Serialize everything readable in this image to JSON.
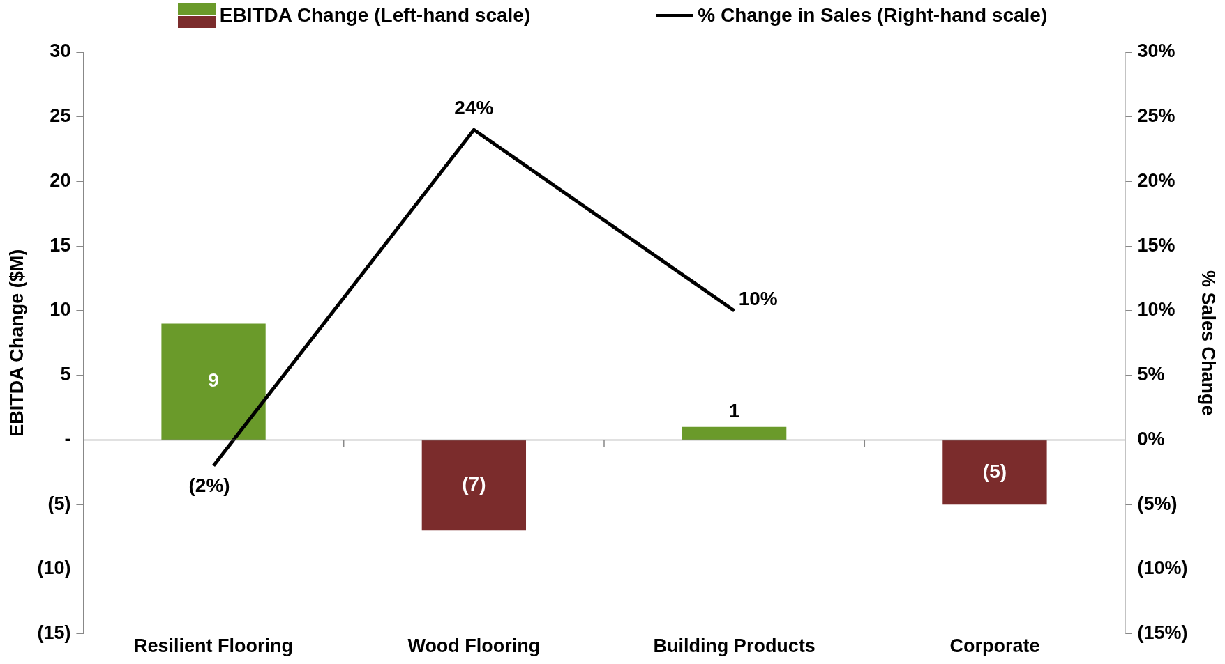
{
  "chart_data": {
    "type": "bar",
    "categories": [
      "Resilient Flooring",
      "Wood Flooring",
      "Building Products",
      "Corporate"
    ],
    "ylabel": "EBITDA Change ($M)",
    "y2label": "% Sales Change",
    "series": [
      {
        "name": "EBITDA Change (Left-hand scale)",
        "colors": [
          "#6a9a2a",
          "#7b2c2c",
          "#6a9a2a",
          "#7b2c2c"
        ],
        "values": [
          9,
          -7,
          1,
          -5
        ],
        "value_labels": [
          "9",
          "(7)",
          "1",
          "(5)"
        ]
      },
      {
        "name": "% Change in Sales (Right-hand scale)",
        "type": "line",
        "axis": "y2",
        "color": "#000000",
        "values": [
          -2,
          24,
          10,
          null
        ],
        "value_labels": [
          "(2%)",
          "24%",
          "10%",
          null
        ]
      }
    ],
    "ylim": [
      -15,
      30
    ],
    "yticks": [
      {
        "value": -15,
        "label": "(15)"
      },
      {
        "value": -10,
        "label": "(10)"
      },
      {
        "value": -5,
        "label": "(5)"
      },
      {
        "value": 0,
        "label": "-"
      },
      5,
      10,
      15,
      20,
      25,
      30
    ],
    "y2lim": [
      -15,
      30
    ],
    "y2ticks": [
      {
        "value": -15,
        "label": "(15%)"
      },
      {
        "value": -10,
        "label": "(10%)"
      },
      {
        "value": -5,
        "label": "(5%)"
      },
      {
        "value": 0,
        "label": "0%"
      },
      {
        "value": 5,
        "label": "5%"
      },
      {
        "value": 10,
        "label": "10%"
      },
      {
        "value": 15,
        "label": "15%"
      },
      {
        "value": 20,
        "label": "20%"
      },
      {
        "value": 25,
        "label": "25%"
      },
      {
        "value": 30,
        "label": "30%"
      }
    ],
    "legend": "top",
    "marker": "none"
  }
}
